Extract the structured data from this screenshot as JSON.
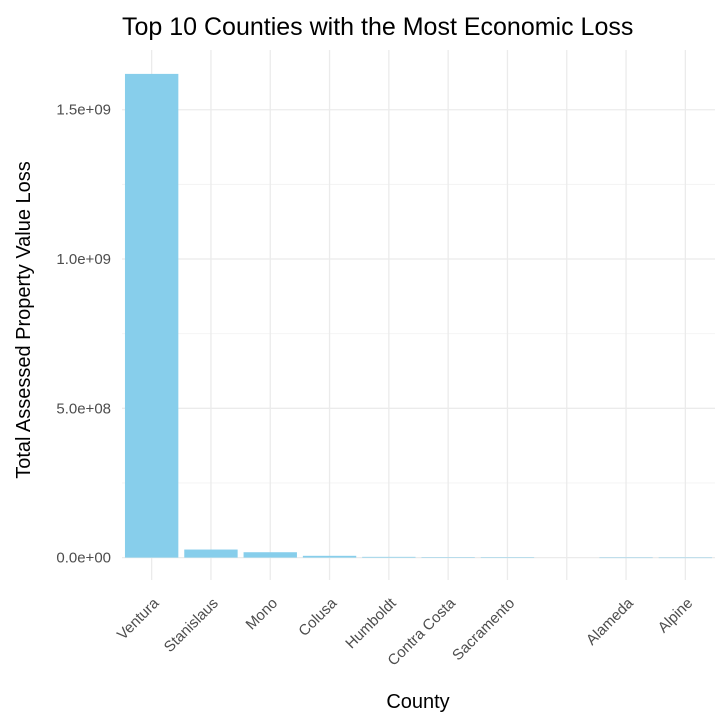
{
  "chart_data": {
    "type": "bar",
    "title": "Top 10 Counties with the Most Economic Loss",
    "xlabel": "County",
    "ylabel": "Total Assessed Property Value Loss",
    "categories": [
      "Ventura",
      "Stanislaus",
      "Mono",
      "Colusa",
      "Humboldt",
      "Contra Costa",
      "Sacramento",
      "",
      "Alameda",
      "Alpine"
    ],
    "values": [
      1620000000,
      27000000,
      18000000,
      6000000,
      2500000,
      1500000,
      300000,
      0,
      100000,
      50000
    ],
    "ylim": [
      -75000000,
      1700000000
    ],
    "yticks": [
      0,
      500000000,
      1000000000,
      1500000000
    ],
    "ytick_labels": [
      "0.0e+00",
      "5.0e+08",
      "1.0e+09",
      "1.5e+09"
    ],
    "yminor_ticks": [
      250000000,
      750000000,
      1250000000
    ],
    "grid": true,
    "bar_color": "#87CEEB",
    "background": "#ffffff",
    "grid_color": "#ebebeb"
  }
}
